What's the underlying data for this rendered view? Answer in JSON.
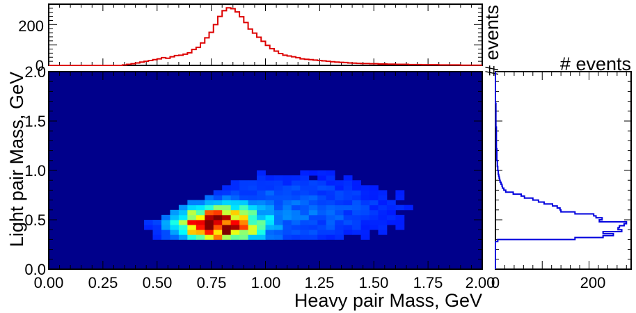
{
  "chart_data": [
    {
      "id": "top-histogram",
      "type": "step",
      "xlim": [
        0.0,
        2.0
      ],
      "ylim": [
        0,
        300
      ],
      "yticks": [
        0,
        200
      ],
      "ytick_labels": [
        "0",
        "200"
      ],
      "ylabel": "# events",
      "series": [
        {
          "color": "#dd0000",
          "bin_edges_range": [
            0.0,
            2.0
          ],
          "bin_width": 0.02,
          "counts": [
            0,
            0,
            0,
            0,
            0,
            0,
            0,
            0,
            0,
            0,
            0,
            0,
            0,
            0,
            0,
            0,
            0,
            2,
            5,
            8,
            12,
            16,
            20,
            24,
            28,
            32,
            38,
            35,
            42,
            48,
            50,
            55,
            62,
            78,
            88,
            110,
            135,
            162,
            200,
            240,
            268,
            282,
            278,
            262,
            238,
            210,
            178,
            158,
            138,
            118,
            98,
            82,
            70,
            58,
            50,
            46,
            42,
            38,
            32,
            30,
            28,
            26,
            24,
            22,
            20,
            18,
            16,
            15,
            14,
            12,
            11,
            10,
            9,
            9,
            8,
            8,
            7,
            7,
            6,
            6,
            5,
            5,
            5,
            4,
            4,
            4,
            3,
            3,
            3,
            3,
            2,
            2,
            2,
            2,
            2,
            1,
            1,
            1,
            1,
            1
          ]
        }
      ]
    },
    {
      "id": "main-heatmap",
      "type": "heatmap",
      "xlabel": "Heavy pair Mass, GeV",
      "ylabel": "Light pair Mass, GeV",
      "xlim": [
        0.0,
        2.0
      ],
      "ylim": [
        0.0,
        2.0
      ],
      "xticks": [
        0.0,
        0.25,
        0.5,
        0.75,
        1.0,
        1.25,
        1.5,
        1.75,
        2.0
      ],
      "xtick_labels": [
        "0.00",
        "0.25",
        "0.50",
        "0.75",
        "1.00",
        "1.25",
        "1.50",
        "1.75",
        "2.00"
      ],
      "yticks": [
        0.0,
        0.5,
        1.0,
        1.5,
        2.0
      ],
      "ytick_labels": [
        "0.0",
        "0.5",
        "1.0",
        "1.5",
        "2.0"
      ],
      "colormap": "jet",
      "background_color": "#00008b",
      "x_bins": 50,
      "y_bins": 40,
      "bin_width": 0.04,
      "bin_height": 0.05,
      "peak": {
        "x": 0.78,
        "y": 0.45
      },
      "note_values": "density peaks near heavy mass 0.78 GeV, light mass 0.45 GeV; no events above the line light ≈ heavy and below light ≈ 0.28"
    },
    {
      "id": "right-histogram",
      "type": "step",
      "orientation": "horizontal",
      "ylim": [
        0.0,
        2.0
      ],
      "xlim": [
        0,
        290
      ],
      "xticks": [
        0,
        200
      ],
      "xtick_labels": [
        "0",
        "200"
      ],
      "xlabel": "# events",
      "series": [
        {
          "color": "#0000dd",
          "bin_width": 0.02,
          "counts": [
            0,
            0,
            0,
            0,
            0,
            0,
            0,
            0,
            0,
            0,
            0,
            0,
            0,
            0,
            5,
            170,
            230,
            252,
            230,
            270,
            262,
            265,
            275,
            280,
            222,
            228,
            215,
            210,
            170,
            140,
            138,
            132,
            122,
            104,
            92,
            80,
            62,
            55,
            38,
            22,
            18,
            15,
            14,
            12,
            10,
            9,
            8,
            7,
            6,
            6,
            5,
            5,
            4,
            4,
            4,
            3,
            3,
            3,
            3,
            3,
            3,
            2,
            2,
            2,
            2,
            2,
            2,
            2,
            2,
            2,
            2,
            2,
            1,
            1,
            1,
            1,
            1,
            1,
            1,
            1,
            1,
            1,
            1,
            1,
            0,
            0,
            0,
            0,
            0,
            0,
            0,
            0,
            0,
            0,
            0,
            0,
            0,
            0,
            0,
            0
          ]
        }
      ]
    }
  ]
}
